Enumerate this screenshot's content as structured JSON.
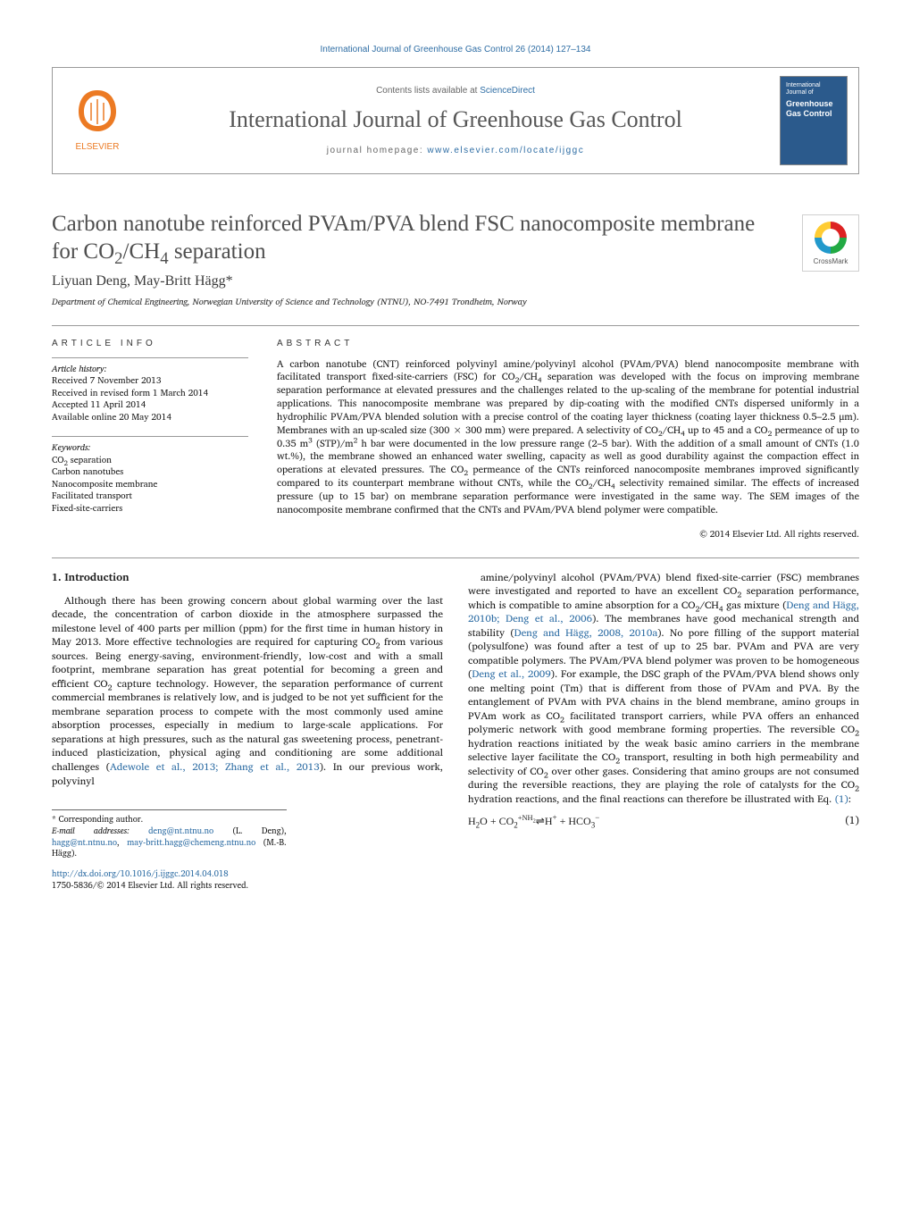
{
  "header": {
    "top_link_text": "International Journal of Greenhouse Gas Control 26 (2014) 127–134",
    "contents_text": "Contents lists available at ",
    "contents_link": "ScienceDirect",
    "journal_title": "International Journal of Greenhouse Gas Control",
    "homepage_label": "journal homepage: ",
    "homepage_url": "www.elsevier.com/locate/ijggc",
    "cover_line1": "International Journal of",
    "cover_line2": "Greenhouse",
    "cover_line3": "Gas Control"
  },
  "crossmark_label": "CrossMark",
  "article": {
    "title_html": "Carbon nanotube reinforced PVAm/PVA blend FSC nanocomposite membrane for CO<sub>2</sub>/CH<sub>4</sub> separation",
    "authors": "Liyuan Deng, May-Britt Hägg*",
    "affiliation": "Department of Chemical Engineering, Norwegian University of Science and Technology (NTNU), NO-7491 Trondheim, Norway"
  },
  "info": {
    "heading": "article info",
    "history_label": "Article history:",
    "history": [
      "Received 7 November 2013",
      "Received in revised form 1 March 2014",
      "Accepted 11 April 2014",
      "Available online 20 May 2014"
    ],
    "keywords_label": "Keywords:",
    "keywords_html": [
      "CO<sub>2</sub> separation",
      "Carbon nanotubes",
      "Nanocomposite membrane",
      "Facilitated transport",
      "Fixed-site-carriers"
    ]
  },
  "abstract": {
    "heading": "abstract",
    "text_html": "A carbon nanotube (CNT) reinforced polyvinyl amine/polyvinyl alcohol (PVAm/PVA) blend nanocomposite membrane with facilitated transport fixed-site-carriers (FSC) for CO<sub>2</sub>/CH<sub>4</sub> separation was developed with the focus on improving membrane separation performance at elevated pressures and the challenges related to the up-scaling of the membrane for potential industrial applications. This nanocomposite membrane was prepared by dip-coating with the modified CNTs dispersed uniformly in a hydrophilic PVAm/PVA blended solution with a precise control of the coating layer thickness (coating layer thickness 0.5–2.5 μm). Membranes with an up-scaled size (300 × 300 mm) were prepared. A selectivity of CO<sub>2</sub>/CH<sub>4</sub> up to 45 and a CO<sub>2</sub> permeance of up to 0.35 m<sup>3</sup> (STP)/m<sup>2</sup> h bar were documented in the low pressure range (2–5 bar). With the addition of a small amount of CNTs (1.0 wt.%), the membrane showed an enhanced water swelling, capacity as well as good durability against the compaction effect in operations at elevated pressures. The CO<sub>2</sub> permeance of the CNTs reinforced nanocomposite membranes improved significantly compared to its counterpart membrane without CNTs, while the CO<sub>2</sub>/CH<sub>4</sub> selectivity remained similar. The effects of increased pressure (up to 15 bar) on membrane separation performance were investigated in the same way. The SEM images of the nanocomposite membrane confirmed that the CNTs and PVAm/PVA blend polymer were compatible.",
    "copyright": "© 2014 Elsevier Ltd. All rights reserved."
  },
  "body": {
    "section_heading": "1. Introduction",
    "col1_html": "Although there has been growing concern about global warming over the last decade, the concentration of carbon dioxide in the atmosphere surpassed the milestone level of 400 parts per million (ppm) for the first time in human history in May 2013. More effective technologies are required for capturing CO<sub>2</sub> from various sources. Being energy-saving, environment-friendly, low-cost and with a small footprint, membrane separation has great potential for becoming a green and efficient CO<sub>2</sub> capture technology. However, the separation performance of current commercial membranes is relatively low, and is judged to be not yet sufficient for the membrane separation process to compete with the most commonly used amine absorption processes, especially in medium to large-scale applications. For separations at high pressures, such as the natural gas sweetening process, penetrant-induced plasticization, physical aging and conditioning are some additional challenges (<a href='#'>Adewole et al., 2013; Zhang et al., 2013</a>). In our previous work, polyvinyl",
    "col2_html": "amine/polyvinyl alcohol (PVAm/PVA) blend fixed-site-carrier (FSC) membranes were investigated and reported to have an excellent CO<sub>2</sub> separation performance, which is compatible to amine absorption for a CO<sub>2</sub>/CH<sub>4</sub> gas mixture (<a href='#'>Deng and Hägg, 2010b; Deng et al., 2006</a>). The membranes have good mechanical strength and stability (<a href='#'>Deng and Hägg, 2008, 2010a</a>). No pore filling of the support material (polysulfone) was found after a test of up to 25 bar. PVAm and PVA are very compatible polymers. The PVAm/PVA blend polymer was proven to be homogeneous (<a href='#'>Deng et al., 2009</a>). For example, the DSC graph of the PVAm/PVA blend shows only one melting point (Tm) that is different from those of PVAm and PVA. By the entanglement of PVAm with PVA chains in the blend membrane, amino groups in PVAm work as CO<sub>2</sub> facilitated transport carriers, while PVA offers an enhanced polymeric network with good membrane forming properties. The reversible CO<sub>2</sub> hydration reactions initiated by the weak basic amino carriers in the membrane selective layer facilitate the CO<sub>2</sub> transport, resulting in both high permeability and selectivity of CO<sub>2</sub> over other gases. Considering that amino groups are not consumed during the reversible reactions, they are playing the role of catalysts for the CO<sub>2</sub> hydration reactions, and the final reactions can therefore be illustrated with Eq. <a href='#'>(1)</a>:",
    "equation_html": "H<sub>2</sub>O + CO<sub>2</sub><span class='super-arrow'>+NH<sub>2</sub></span>⇌H<sup>+</sup> + HCO<sub>3</sub><sup>−</sup>",
    "equation_num": "(1)"
  },
  "footnote": {
    "corresponding": "* Corresponding author.",
    "email_label": "E-mail addresses: ",
    "emails_html": "<a href='#'>deng@nt.ntnu.no</a> (L. Deng), <a href='#'>hagg@nt.ntnu.no</a>, <a href='#'>may-britt.hagg@chemeng.ntnu.no</a> (M.-B. Hägg).",
    "doi_html": "<a href='#'>http://dx.doi.org/10.1016/j.ijggc.2014.04.018</a>",
    "issn_line": "1750-5836/© 2014 Elsevier Ltd. All rights reserved."
  },
  "colors": {
    "link": "#2e6da4",
    "text": "#1a1a1a",
    "heading_gray": "#4e4e4e",
    "border": "#999999"
  }
}
